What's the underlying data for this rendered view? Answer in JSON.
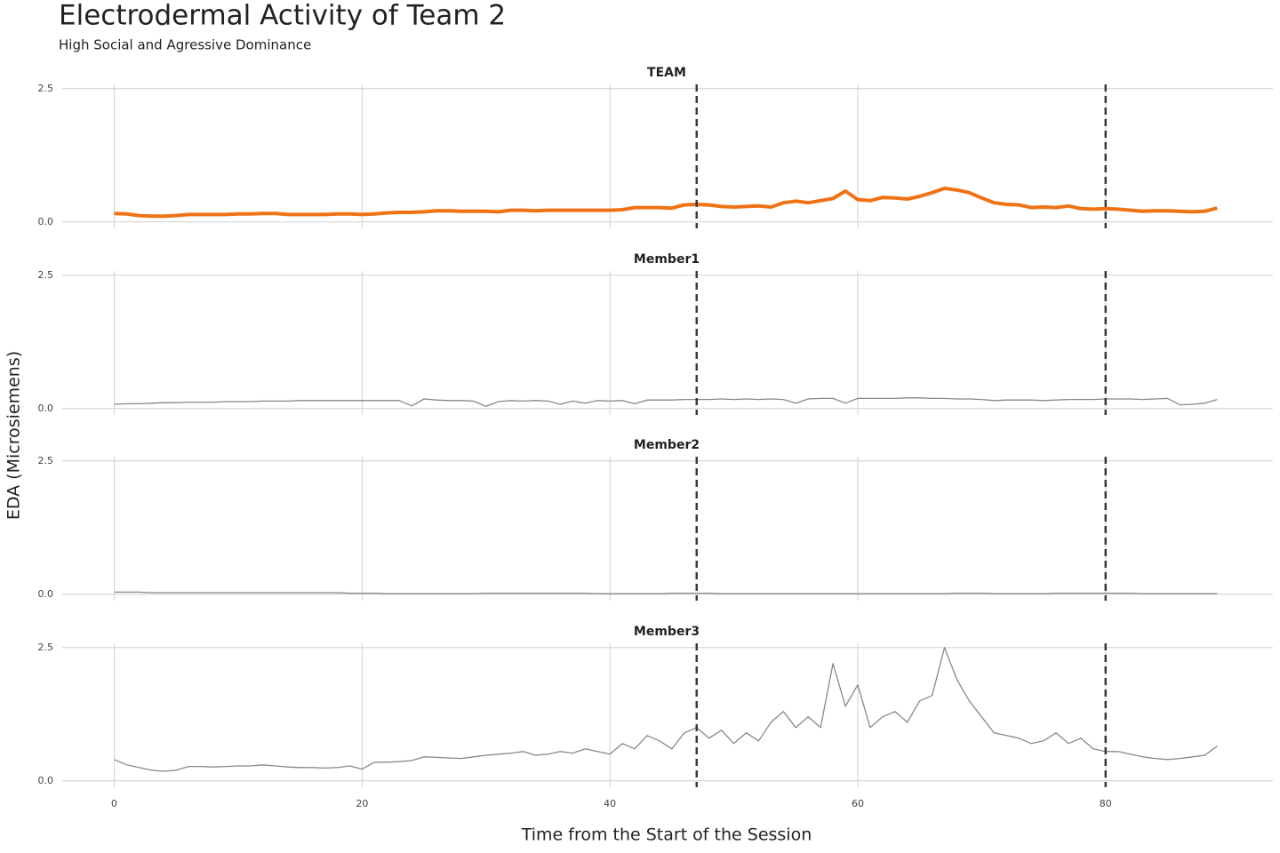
{
  "figure": {
    "title": "Electrodermal Activity of Team 2",
    "subtitle": "High Social and Agressive Dominance",
    "x_label": "Time from the Start of the Session",
    "y_label": "EDA (Microsiemens)",
    "xlim": [
      -4.2,
      93.5
    ],
    "xticks": [
      0,
      20,
      40,
      60,
      80
    ],
    "vlines": [
      47,
      80
    ],
    "x": [
      0,
      1,
      2,
      3,
      4,
      5,
      6,
      7,
      8,
      9,
      10,
      11,
      12,
      13,
      14,
      15,
      16,
      17,
      18,
      19,
      20,
      21,
      22,
      23,
      24,
      25,
      26,
      27,
      28,
      29,
      30,
      31,
      32,
      33,
      34,
      35,
      36,
      37,
      38,
      39,
      40,
      41,
      42,
      43,
      44,
      45,
      46,
      47,
      48,
      49,
      50,
      51,
      52,
      53,
      54,
      55,
      56,
      57,
      58,
      59,
      60,
      61,
      62,
      63,
      64,
      65,
      66,
      67,
      68,
      69,
      70,
      71,
      72,
      73,
      74,
      75,
      76,
      77,
      78,
      79,
      80,
      81,
      82,
      83,
      84,
      85,
      86,
      87,
      88,
      89
    ]
  },
  "chart_data": [
    {
      "type": "line",
      "title": "TEAM",
      "color": "#ef7215",
      "line_width": 4,
      "ylim": [
        -0.12,
        2.58
      ],
      "yticks": [
        {
          "value": 0,
          "label": "0.0"
        },
        2.5
      ],
      "values": [
        0.16,
        0.15,
        0.12,
        0.11,
        0.11,
        0.12,
        0.14,
        0.14,
        0.14,
        0.14,
        0.15,
        0.15,
        0.16,
        0.16,
        0.14,
        0.14,
        0.14,
        0.14,
        0.15,
        0.15,
        0.14,
        0.15,
        0.17,
        0.18,
        0.18,
        0.19,
        0.21,
        0.21,
        0.2,
        0.2,
        0.2,
        0.19,
        0.22,
        0.22,
        0.21,
        0.22,
        0.22,
        0.22,
        0.22,
        0.22,
        0.22,
        0.23,
        0.27,
        0.27,
        0.27,
        0.26,
        0.32,
        0.33,
        0.32,
        0.29,
        0.28,
        0.29,
        0.3,
        0.28,
        0.36,
        0.39,
        0.36,
        0.4,
        0.44,
        0.58,
        0.42,
        0.4,
        0.46,
        0.45,
        0.43,
        0.48,
        0.55,
        0.63,
        0.6,
        0.55,
        0.45,
        0.36,
        0.33,
        0.32,
        0.27,
        0.28,
        0.27,
        0.3,
        0.25,
        0.24,
        0.25,
        0.24,
        0.22,
        0.2,
        0.21,
        0.21,
        0.2,
        0.19,
        0.2,
        0.26
      ]
    },
    {
      "type": "line",
      "title": "Member1",
      "color": "#888888",
      "line_width": 1.3,
      "ylim": [
        -0.12,
        2.58
      ],
      "yticks": [
        {
          "value": 0,
          "label": "0.0"
        },
        2.5
      ],
      "values": [
        0.08,
        0.09,
        0.09,
        0.1,
        0.11,
        0.11,
        0.12,
        0.12,
        0.12,
        0.13,
        0.13,
        0.13,
        0.14,
        0.14,
        0.14,
        0.15,
        0.15,
        0.15,
        0.15,
        0.15,
        0.15,
        0.15,
        0.15,
        0.15,
        0.05,
        0.18,
        0.16,
        0.15,
        0.15,
        0.14,
        0.04,
        0.13,
        0.15,
        0.14,
        0.15,
        0.14,
        0.08,
        0.14,
        0.1,
        0.15,
        0.14,
        0.15,
        0.09,
        0.16,
        0.16,
        0.16,
        0.17,
        0.17,
        0.17,
        0.18,
        0.17,
        0.18,
        0.17,
        0.18,
        0.17,
        0.1,
        0.18,
        0.19,
        0.19,
        0.1,
        0.19,
        0.19,
        0.19,
        0.19,
        0.2,
        0.2,
        0.19,
        0.19,
        0.18,
        0.18,
        0.17,
        0.15,
        0.16,
        0.16,
        0.16,
        0.15,
        0.16,
        0.17,
        0.17,
        0.17,
        0.18,
        0.18,
        0.18,
        0.17,
        0.18,
        0.19,
        0.07,
        0.08,
        0.1,
        0.17
      ]
    },
    {
      "type": "line",
      "title": "Member2",
      "color": "#888888",
      "line_width": 1.3,
      "ylim": [
        -0.12,
        2.58
      ],
      "yticks": [
        {
          "value": 0,
          "label": "0.0"
        },
        2.5
      ],
      "values": [
        0.04,
        0.04,
        0.04,
        0.03,
        0.03,
        0.03,
        0.03,
        0.03,
        0.03,
        0.03,
        0.03,
        0.03,
        0.03,
        0.03,
        0.03,
        0.03,
        0.03,
        0.03,
        0.03,
        0.02,
        0.02,
        0.02,
        0.01,
        0.01,
        0.01,
        0.01,
        0.01,
        0.01,
        0.01,
        0.01,
        0.02,
        0.02,
        0.02,
        0.02,
        0.02,
        0.02,
        0.02,
        0.02,
        0.02,
        0.01,
        0.01,
        0.01,
        0.01,
        0.01,
        0.01,
        0.02,
        0.02,
        0.02,
        0.02,
        0.01,
        0.01,
        0.01,
        0.01,
        0.01,
        0.01,
        0.01,
        0.01,
        0.01,
        0.01,
        0.01,
        0.01,
        0.01,
        0.01,
        0.01,
        0.01,
        0.01,
        0.01,
        0.01,
        0.02,
        0.02,
        0.02,
        0.01,
        0.01,
        0.01,
        0.01,
        0.01,
        0.02,
        0.02,
        0.02,
        0.02,
        0.02,
        0.02,
        0.02,
        0.01,
        0.01,
        0.01,
        0.01,
        0.01,
        0.01,
        0.01
      ]
    },
    {
      "type": "line",
      "title": "Member3",
      "color": "#888888",
      "line_width": 1.3,
      "ylim": [
        -0.12,
        2.58
      ],
      "yticks": [
        {
          "value": 0,
          "label": "0.0"
        },
        2.5
      ],
      "values": [
        0.4,
        0.3,
        0.25,
        0.2,
        0.18,
        0.2,
        0.27,
        0.27,
        0.26,
        0.27,
        0.28,
        0.28,
        0.3,
        0.28,
        0.26,
        0.25,
        0.25,
        0.24,
        0.25,
        0.28,
        0.22,
        0.35,
        0.35,
        0.36,
        0.38,
        0.45,
        0.44,
        0.43,
        0.42,
        0.45,
        0.48,
        0.5,
        0.52,
        0.55,
        0.48,
        0.5,
        0.55,
        0.52,
        0.6,
        0.55,
        0.5,
        0.7,
        0.6,
        0.85,
        0.75,
        0.6,
        0.9,
        1.0,
        0.8,
        0.95,
        0.7,
        0.9,
        0.75,
        1.1,
        1.3,
        1.0,
        1.2,
        1.0,
        2.2,
        1.4,
        1.8,
        1.0,
        1.2,
        1.3,
        1.1,
        1.5,
        1.6,
        2.5,
        1.9,
        1.5,
        1.2,
        0.9,
        0.85,
        0.8,
        0.7,
        0.75,
        0.9,
        0.7,
        0.8,
        0.6,
        0.55,
        0.55,
        0.5,
        0.45,
        0.42,
        0.4,
        0.42,
        0.45,
        0.48,
        0.65
      ]
    }
  ]
}
